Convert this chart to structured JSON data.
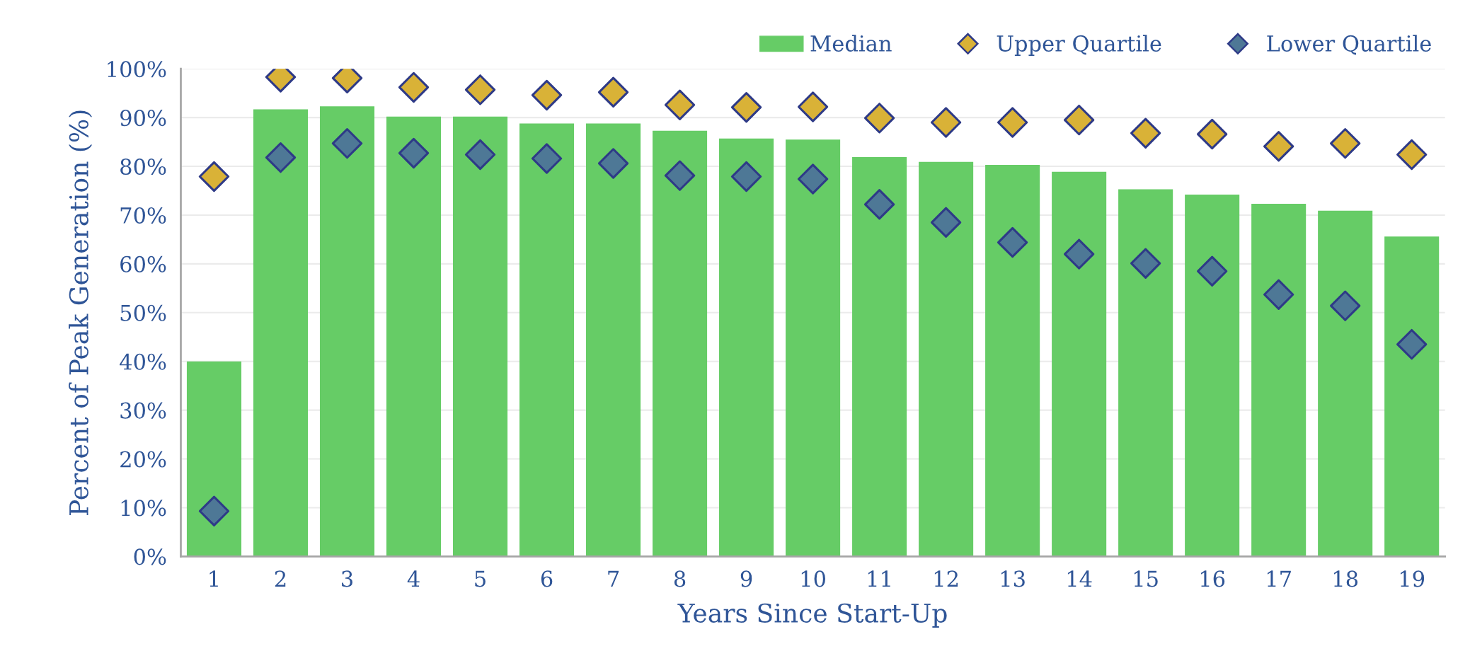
{
  "chart_data": {
    "type": "bar",
    "xlabel": "Years Since Start-Up",
    "ylabel": "Percent of Peak Generation (%)",
    "categories": [
      "1",
      "2",
      "3",
      "4",
      "5",
      "6",
      "7",
      "8",
      "9",
      "10",
      "11",
      "12",
      "13",
      "14",
      "15",
      "16",
      "17",
      "18",
      "19"
    ],
    "series": [
      {
        "name": "Median",
        "color": "#66cc66",
        "values": [
          40,
          91.7,
          92.3,
          90.2,
          90.2,
          88.8,
          88.8,
          87.3,
          85.7,
          85.5,
          81.9,
          80.9,
          80.3,
          78.9,
          75.3,
          74.2,
          72.3,
          70.9,
          65.6
        ]
      },
      {
        "name": "Upper Quartile",
        "type": "scatter",
        "color": "#d9b237",
        "values": [
          77.9,
          98.3,
          98.1,
          96.2,
          95.7,
          94.6,
          95.2,
          92.6,
          92.1,
          92.2,
          89.9,
          89.0,
          89.0,
          89.5,
          86.8,
          86.6,
          84.1,
          84.7,
          82.4
        ]
      },
      {
        "name": "Lower Quartile",
        "type": "scatter",
        "color": "#4e7896",
        "values": [
          9.3,
          81.8,
          84.7,
          82.7,
          82.4,
          81.6,
          80.6,
          78.1,
          77.9,
          77.4,
          72.2,
          68.5,
          64.4,
          62.0,
          60.1,
          58.5,
          53.7,
          51.4,
          43.5
        ]
      }
    ],
    "marker": "diamond",
    "ylim": [
      0,
      100
    ],
    "yticks": [
      {
        "value": 0,
        "label": "0%"
      },
      {
        "value": 10,
        "label": "10%"
      },
      {
        "value": 20,
        "label": "20%"
      },
      {
        "value": 30,
        "label": "30%"
      },
      {
        "value": 40,
        "label": "40%"
      },
      {
        "value": 50,
        "label": "50%"
      },
      {
        "value": 60,
        "label": "60%"
      },
      {
        "value": 70,
        "label": "70%"
      },
      {
        "value": 80,
        "label": "80%"
      },
      {
        "value": 90,
        "label": "90%"
      },
      {
        "value": 100,
        "label": "100%"
      }
    ],
    "grid": "y",
    "legend": "top right"
  }
}
